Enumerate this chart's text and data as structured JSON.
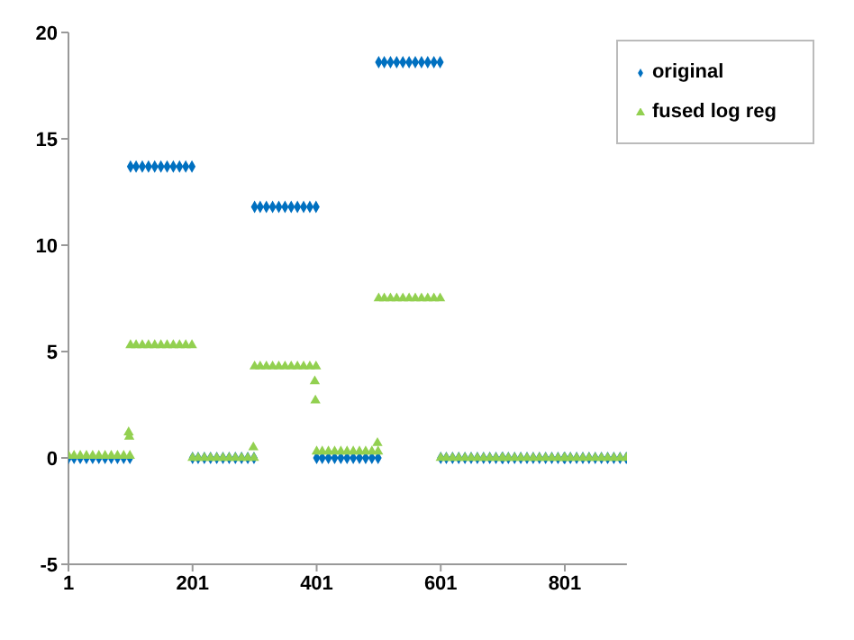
{
  "chart_data": {
    "type": "scatter",
    "x": [
      1,
      10,
      20,
      30,
      40,
      50,
      60,
      70,
      80,
      90,
      100,
      101,
      110,
      120,
      130,
      140,
      150,
      160,
      170,
      180,
      190,
      200,
      201,
      210,
      220,
      230,
      240,
      250,
      260,
      270,
      280,
      290,
      300,
      301,
      310,
      320,
      330,
      340,
      350,
      360,
      370,
      380,
      390,
      400,
      401,
      410,
      420,
      430,
      440,
      450,
      460,
      470,
      480,
      490,
      500,
      501,
      510,
      520,
      530,
      540,
      550,
      560,
      570,
      580,
      590,
      600,
      601,
      610,
      620,
      630,
      640,
      650,
      660,
      670,
      680,
      690,
      700,
      701,
      710,
      720,
      730,
      740,
      750,
      760,
      770,
      780,
      790,
      800,
      801,
      810,
      820,
      830,
      840,
      850,
      860,
      870,
      880,
      890,
      900
    ],
    "series": [
      {
        "name": "original",
        "color": "#0070c0",
        "marker": "diamond",
        "values": [
          0,
          0,
          0,
          0,
          0,
          0,
          0,
          0,
          0,
          0,
          0,
          13.7,
          13.7,
          13.7,
          13.7,
          13.7,
          13.7,
          13.7,
          13.7,
          13.7,
          13.7,
          13.7,
          0,
          0,
          0,
          0,
          0,
          0,
          0,
          0,
          0,
          0,
          0,
          11.8,
          11.8,
          11.8,
          11.8,
          11.8,
          11.8,
          11.8,
          11.8,
          11.8,
          11.8,
          11.8,
          0,
          0,
          0,
          0,
          0,
          0,
          0,
          0,
          0,
          0,
          0,
          18.6,
          18.6,
          18.6,
          18.6,
          18.6,
          18.6,
          18.6,
          18.6,
          18.6,
          18.6,
          18.6,
          0,
          0,
          0,
          0,
          0,
          0,
          0,
          0,
          0,
          0,
          0,
          0,
          0,
          0,
          0,
          0,
          0,
          0,
          0,
          0,
          0,
          0,
          0,
          0,
          0,
          0,
          0,
          0,
          0,
          0,
          0,
          0,
          0
        ]
      },
      {
        "name": "fused log reg",
        "color": "#92d050",
        "marker": "triangle",
        "x": [
          1,
          10,
          20,
          30,
          40,
          50,
          60,
          70,
          80,
          90,
          100,
          101,
          110,
          120,
          130,
          140,
          150,
          160,
          170,
          180,
          190,
          200,
          201,
          210,
          220,
          230,
          240,
          250,
          260,
          270,
          280,
          290,
          300,
          301,
          310,
          320,
          330,
          340,
          350,
          360,
          370,
          380,
          390,
          400,
          401,
          410,
          420,
          430,
          440,
          450,
          460,
          470,
          480,
          490,
          500,
          501,
          510,
          520,
          530,
          540,
          550,
          560,
          570,
          580,
          590,
          600,
          601,
          610,
          620,
          630,
          640,
          650,
          660,
          670,
          680,
          690,
          700,
          701,
          710,
          720,
          730,
          740,
          750,
          760,
          770,
          780,
          790,
          800,
          801,
          810,
          820,
          830,
          840,
          850,
          860,
          870,
          880,
          890,
          900,
          98,
          99,
          299,
          398,
          399,
          499
        ],
        "values": [
          0.1,
          0.1,
          0.1,
          0.1,
          0.1,
          0.1,
          0.1,
          0.1,
          0.1,
          0.1,
          0.1,
          5.3,
          5.3,
          5.3,
          5.3,
          5.3,
          5.3,
          5.3,
          5.3,
          5.3,
          5.3,
          5.3,
          0,
          0,
          0,
          0,
          0,
          0,
          0,
          0,
          0,
          0,
          0,
          4.3,
          4.3,
          4.3,
          4.3,
          4.3,
          4.3,
          4.3,
          4.3,
          4.3,
          4.3,
          4.3,
          0.3,
          0.3,
          0.3,
          0.3,
          0.3,
          0.3,
          0.3,
          0.3,
          0.3,
          0.3,
          0.3,
          7.5,
          7.5,
          7.5,
          7.5,
          7.5,
          7.5,
          7.5,
          7.5,
          7.5,
          7.5,
          7.5,
          0,
          0,
          0,
          0,
          0,
          0,
          0,
          0,
          0,
          0,
          0,
          0,
          0,
          0,
          0,
          0,
          0,
          0,
          0,
          0,
          0,
          0,
          0,
          0,
          0,
          0,
          0,
          0,
          0,
          0,
          0,
          0,
          0,
          1.2,
          1.0,
          0.5,
          3.6,
          2.7,
          0.7
        ]
      }
    ],
    "xlim": [
      1,
      901
    ],
    "xticks": [
      1,
      201,
      401,
      601,
      801
    ],
    "ylim": [
      -5,
      20
    ],
    "yticks": [
      -5,
      0,
      5,
      10,
      15,
      20
    ],
    "grid": false,
    "legend": "top right"
  }
}
